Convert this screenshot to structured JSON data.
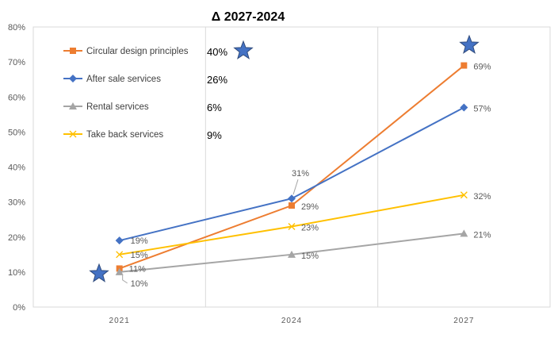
{
  "chart_data": {
    "type": "line",
    "title": "Δ  2027-2024",
    "x": [
      "2021",
      "2024",
      "2027"
    ],
    "ylim": [
      0,
      0.8
    ],
    "yticks": [
      "0%",
      "10%",
      "20%",
      "30%",
      "40%",
      "50%",
      "60%",
      "70%",
      "80%"
    ],
    "grid": "vertical",
    "legend_position": "top-left",
    "series": [
      {
        "name": "Circular design principles",
        "values": [
          0.11,
          0.29,
          0.69
        ],
        "labels": [
          "11%",
          "29%",
          "69%"
        ],
        "color": "#ED7D31",
        "marker": "square",
        "delta": "40%"
      },
      {
        "name": "After sale services",
        "values": [
          0.19,
          0.31,
          0.57
        ],
        "labels": [
          "19%",
          "31%",
          "57%"
        ],
        "color": "#4472C4",
        "marker": "diamond",
        "delta": "26%"
      },
      {
        "name": "Rental services",
        "values": [
          0.1,
          0.15,
          0.21
        ],
        "labels": [
          "10%",
          "15%",
          "21%"
        ],
        "color": "#A5A5A5",
        "marker": "triangle",
        "delta": "6%"
      },
      {
        "name": "Take back services",
        "values": [
          0.15,
          0.23,
          0.32
        ],
        "labels": [
          "15%",
          "23%",
          "32%"
        ],
        "color": "#FFC000",
        "marker": "x",
        "delta": "9%"
      }
    ],
    "annotations": [
      {
        "type": "star-icon",
        "color": "#4472C4",
        "near": "40% delta"
      },
      {
        "type": "star-icon",
        "color": "#4472C4",
        "near": "2027 top"
      },
      {
        "type": "star-icon",
        "color": "#4472C4",
        "near": "2021 bottom"
      }
    ]
  }
}
